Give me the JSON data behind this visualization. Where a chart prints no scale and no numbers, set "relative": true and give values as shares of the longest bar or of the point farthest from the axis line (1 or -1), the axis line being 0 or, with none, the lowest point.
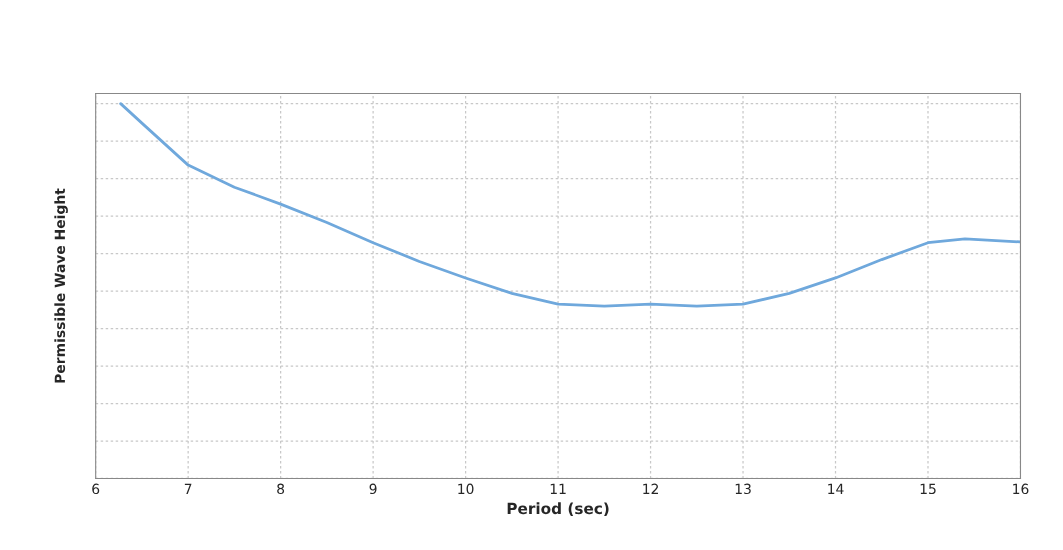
{
  "chart_data": {
    "type": "line",
    "relative": true,
    "xlabel": "Period (sec)",
    "ylabel": "Permissible Wave Height",
    "x": [
      6.27,
      6.5,
      7,
      7.5,
      8,
      8.5,
      9,
      9.5,
      10,
      10.5,
      11,
      11.5,
      12,
      12.5,
      13,
      13.5,
      14,
      14.5,
      15,
      15.4,
      16
    ],
    "series": [
      {
        "color": "#6fa8dc",
        "values": [
          1.0,
          0.948,
          0.836,
          0.777,
          0.732,
          0.683,
          0.629,
          0.579,
          0.535,
          0.494,
          0.465,
          0.46,
          0.465,
          0.46,
          0.465,
          0.494,
          0.535,
          0.584,
          0.629,
          0.639,
          0.631
        ]
      }
    ],
    "xlim": [
      6,
      16
    ],
    "xticks": [
      6,
      7,
      8,
      9,
      10,
      11,
      12,
      13,
      14,
      15,
      16
    ],
    "tick_labels": "x",
    "grid": true,
    "legend": false,
    "marker": "none",
    "line_style": "solid"
  }
}
